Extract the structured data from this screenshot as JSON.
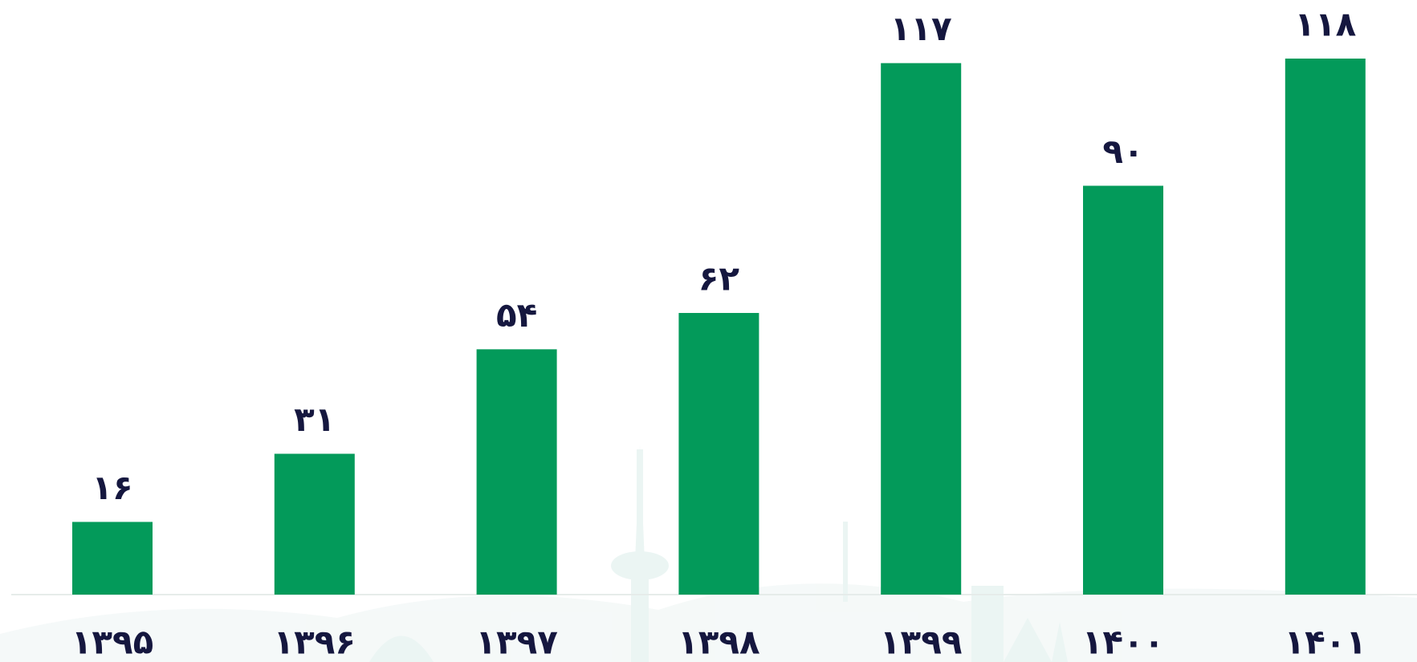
{
  "chart_data": {
    "type": "bar",
    "categories": [
      "۱۳۹۵",
      "۱۳۹۶",
      "۱۳۹۷",
      "۱۳۹۸",
      "۱۳۹۹",
      "۱۴۰۰",
      "۱۴۰۱"
    ],
    "values": [
      16,
      31,
      54,
      62,
      117,
      90,
      118
    ],
    "value_labels": [
      "۱۶",
      "۳۱",
      "۵۴",
      "۶۲",
      "۱۱۷",
      "۹۰",
      "۱۱۸"
    ],
    "color": "#039a5a"
  }
}
